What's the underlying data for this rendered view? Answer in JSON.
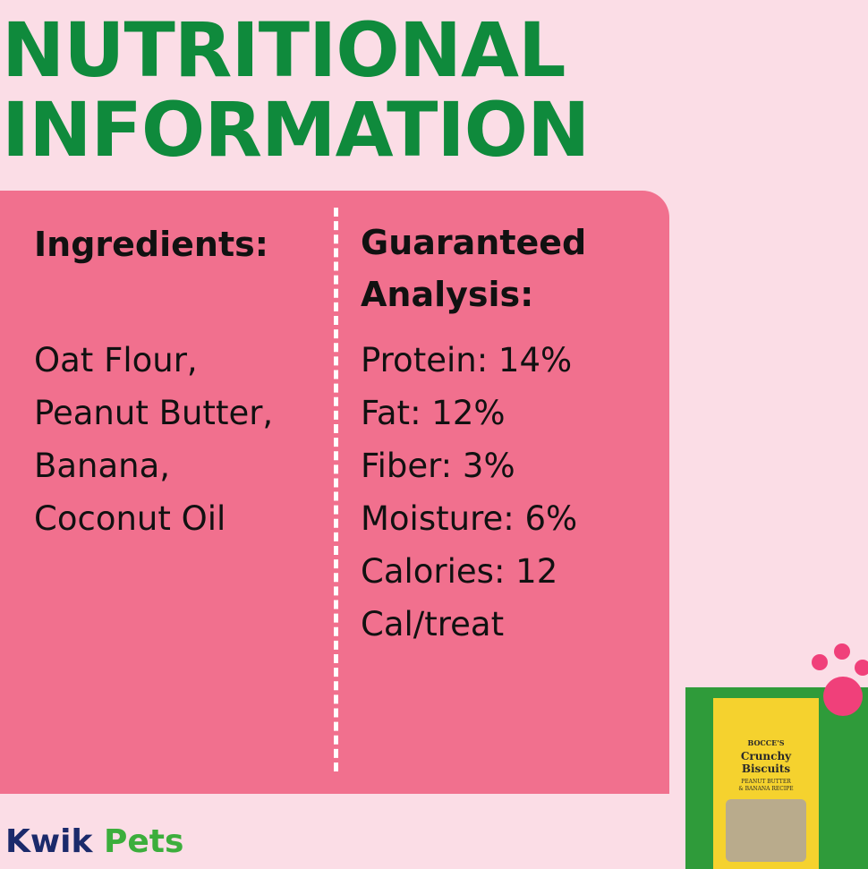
{
  "header": {
    "title_lines": [
      "NUTRITIONAL",
      "INFORMATION"
    ]
  },
  "ingredients": {
    "heading": "Ingredients:",
    "lines": [
      "Oat Flour,",
      "Peanut Butter,",
      "Banana,",
      "Coconut Oil"
    ]
  },
  "analysis": {
    "heading_lines": [
      "Guaranteed",
      "Analysis:"
    ],
    "lines": [
      "Protein: 14%",
      "Fat: 12%",
      "Fiber: 3%",
      "Moisture: 6%",
      "Calories: 12",
      "Cal/treat"
    ]
  },
  "logo": {
    "first": "Kwik",
    "second": "Pets"
  },
  "product": {
    "brand": "BOCCE'S",
    "name_lines": [
      "Crunchy",
      "Biscuits"
    ],
    "flavor_lines": [
      "PEANUT BUTTER",
      "& BANANA RECIPE"
    ]
  }
}
